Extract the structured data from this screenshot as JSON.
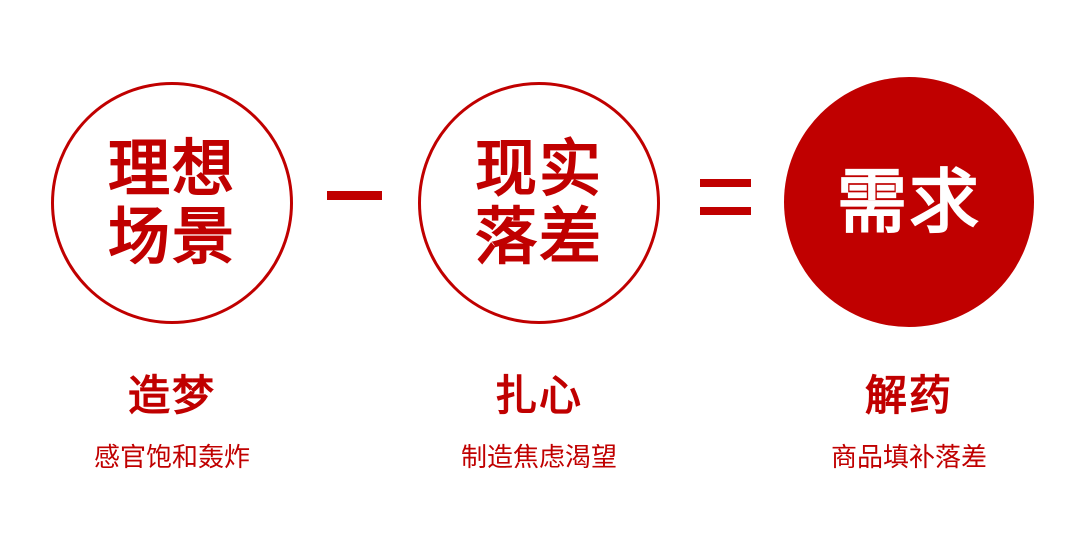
{
  "formula": {
    "ideal": {
      "line1": "理想",
      "line2": "场景",
      "caption_title": "造梦",
      "caption_sub": "感官饱和轰炸"
    },
    "reality": {
      "line1": "现实",
      "line2": "落差",
      "caption_title": "扎心",
      "caption_sub": "制造焦虑渴望"
    },
    "demand": {
      "text": "需求",
      "caption_title": "解药",
      "caption_sub": "商品填补落差"
    },
    "operators": {
      "first": "minus",
      "second": "equals"
    }
  },
  "colors": {
    "accent": "#c00000",
    "background": "#ffffff"
  }
}
